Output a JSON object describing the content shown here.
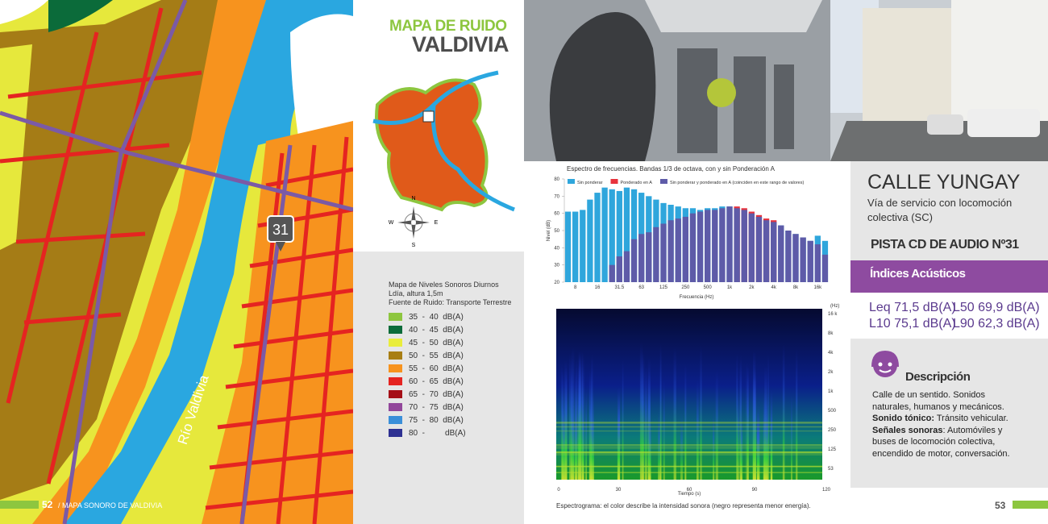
{
  "left_page": {
    "river_label": "Río Valdivia",
    "marker": "31",
    "footer_page": "52",
    "footer_title": "/ MAPA SONORO DE VALDIVIA"
  },
  "header": {
    "kicker": "MAPA DE RUIDO",
    "title": "VALDIVIA"
  },
  "compass": {
    "n": "N",
    "e": "E",
    "s": "S",
    "w": "W"
  },
  "legend": {
    "lines": [
      "Mapa de Niveles Sonoros Diurnos",
      "Ldía, altura 1,5m",
      "Fuente de Ruido: Transporte Terrestre"
    ],
    "items": [
      {
        "label": "35  -  40  dB(A)",
        "color": "#8dc63f"
      },
      {
        "label": "40  -  45  dB(A)",
        "color": "#0b6b3a"
      },
      {
        "label": "45  -  50  dB(A)",
        "color": "#e9ed3b"
      },
      {
        "label": "50  -  55  dB(A)",
        "color": "#a87e13"
      },
      {
        "label": "55  -  60  dB(A)",
        "color": "#f7931e"
      },
      {
        "label": "60  -  65  dB(A)",
        "color": "#e52421"
      },
      {
        "label": "65  -  70  dB(A)",
        "color": "#a50f17"
      },
      {
        "label": "70  -  75  dB(A)",
        "color": "#92479b"
      },
      {
        "label": "75  -  80  dB(A)",
        "color": "#3a8fd9"
      },
      {
        "label": "80  -         dB(A)",
        "color": "#2e3192"
      }
    ]
  },
  "location": {
    "title": "CALLE YUNGAY",
    "subtitle": "Vía de servicio con locomoción colectiva (SC)",
    "track": "PISTA CD DE AUDIO Nº31"
  },
  "indices": {
    "heading": "Índices Acústicos",
    "items": [
      "Leq 71,5 dB(A)",
      "L50 69,9 dB(A)",
      "L10 75,1 dB(A)",
      "L90 62,3 dB(A)"
    ]
  },
  "description": {
    "heading": "Descripción",
    "runs": [
      {
        "text": "Calle de un sentido. Sonidos naturales, humanos y mecánicos.",
        "bold": false
      },
      {
        "text": "Sonido tónico:",
        "bold": true
      },
      {
        "text": " Tránsito vehicular.",
        "bold": false
      },
      {
        "text": "Señales sonoras",
        "bold": true
      },
      {
        "text": ": Automóviles y buses de locomoción colectiva, encendido de motor, conversación.",
        "bold": false
      }
    ]
  },
  "chart_data": {
    "type": "bar",
    "title": "Espectro de frecuencias. Bandas 1/3 de octava, con y sin Ponderación A",
    "y_label": "Nivel (dB)",
    "x_label": "Frecuencia (Hz)",
    "categories": [
      null,
      "8",
      null,
      null,
      "16",
      null,
      null,
      "31.5",
      null,
      null,
      "63",
      null,
      null,
      "125",
      null,
      null,
      "250",
      null,
      null,
      "500",
      null,
      null,
      "1k",
      null,
      null,
      "2k",
      null,
      null,
      "4k",
      null,
      null,
      "8k",
      null,
      null,
      "16k",
      null
    ],
    "series": [
      {
        "name": "Sin ponderar",
        "color": "#2fa6dc",
        "values": [
          61,
          61,
          62,
          68,
          72,
          75,
          74,
          73,
          75,
          74,
          72,
          70,
          68,
          66,
          65,
          64,
          63,
          63,
          62,
          63,
          63,
          64,
          64,
          63,
          62,
          60,
          58,
          56,
          55,
          53,
          50,
          48,
          46,
          44,
          47,
          44
        ]
      },
      {
        "name": "Ponderado en A",
        "color": "#e8323c",
        "values": [
          null,
          null,
          null,
          null,
          null,
          null,
          null,
          null,
          null,
          null,
          null,
          null,
          null,
          null,
          null,
          null,
          null,
          null,
          null,
          null,
          null,
          null,
          null,
          64,
          63,
          61,
          59,
          57,
          56,
          null,
          null,
          null,
          null,
          null,
          null,
          null
        ]
      },
      {
        "name": "Sin ponderar y ponderado en A (coinciden en este rango de valores)",
        "color": "#5e5ba8",
        "values": [
          null,
          null,
          null,
          null,
          null,
          null,
          30,
          35,
          38,
          45,
          48,
          49,
          52,
          54,
          56,
          57,
          58,
          60,
          61,
          62,
          62,
          63,
          64,
          63,
          62,
          60,
          58,
          56,
          55,
          53,
          50,
          48,
          46,
          44,
          42,
          36
        ]
      }
    ],
    "ylim": [
      20,
      80
    ],
    "yticks": [
      20,
      30,
      40,
      50,
      60,
      70,
      80
    ],
    "grid": false,
    "legend": "top"
  },
  "spectrogram": {
    "y_unit": "(Hz)",
    "y_ticks": [
      "16 k",
      "8k",
      "4k",
      "2k",
      "1k",
      "500",
      "250",
      "125",
      "53"
    ],
    "x_ticks": [
      "0",
      "30",
      "60",
      "90",
      "120"
    ],
    "x_label": "Tiempo (s)",
    "caption": "Espectrograma: el color describe la intensidad sonora (negro representa menor energía)."
  },
  "right_page": {
    "footer_page": "53"
  }
}
